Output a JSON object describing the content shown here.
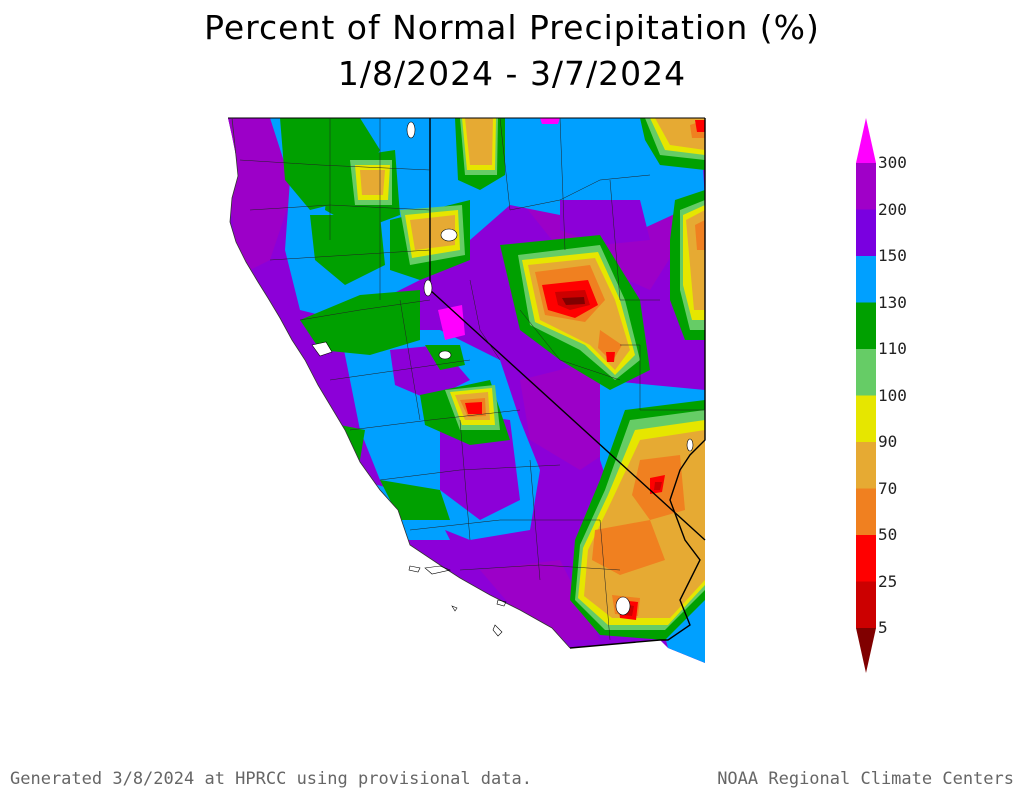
{
  "title": {
    "line1": "Percent of Normal Precipitation (%)",
    "line2": "1/8/2024 - 3/7/2024"
  },
  "legend": {
    "ticks": [
      "300",
      "200",
      "150",
      "130",
      "110",
      "100",
      "90",
      "70",
      "50",
      "25",
      "5"
    ],
    "colors": [
      "#ff00ff",
      "#a000c8",
      "#7a00e0",
      "#00a0ff",
      "#00a000",
      "#66cc66",
      "#e6e600",
      "#e6aa33",
      "#f08020",
      "#ff0000",
      "#cc0000",
      "#800000"
    ]
  },
  "map": {
    "region": "California and Nevada",
    "legend_class_colors": {
      "over_200": "#a000c8",
      "150_200": "#7a00e0",
      "130_150": "#00a0ff",
      "110_130": "#00a000",
      "100_110": "#66cc66",
      "90_100": "#e6e600",
      "70_90": "#e6aa33",
      "50_70": "#f08020",
      "25_50": "#ff0000",
      "5_25": "#cc0000",
      "under_5": "#800000",
      "over_300": "#ff00ff"
    }
  },
  "footer": {
    "left": "Generated 3/8/2024 at HPRCC using provisional data.",
    "right": "NOAA Regional Climate Centers"
  }
}
